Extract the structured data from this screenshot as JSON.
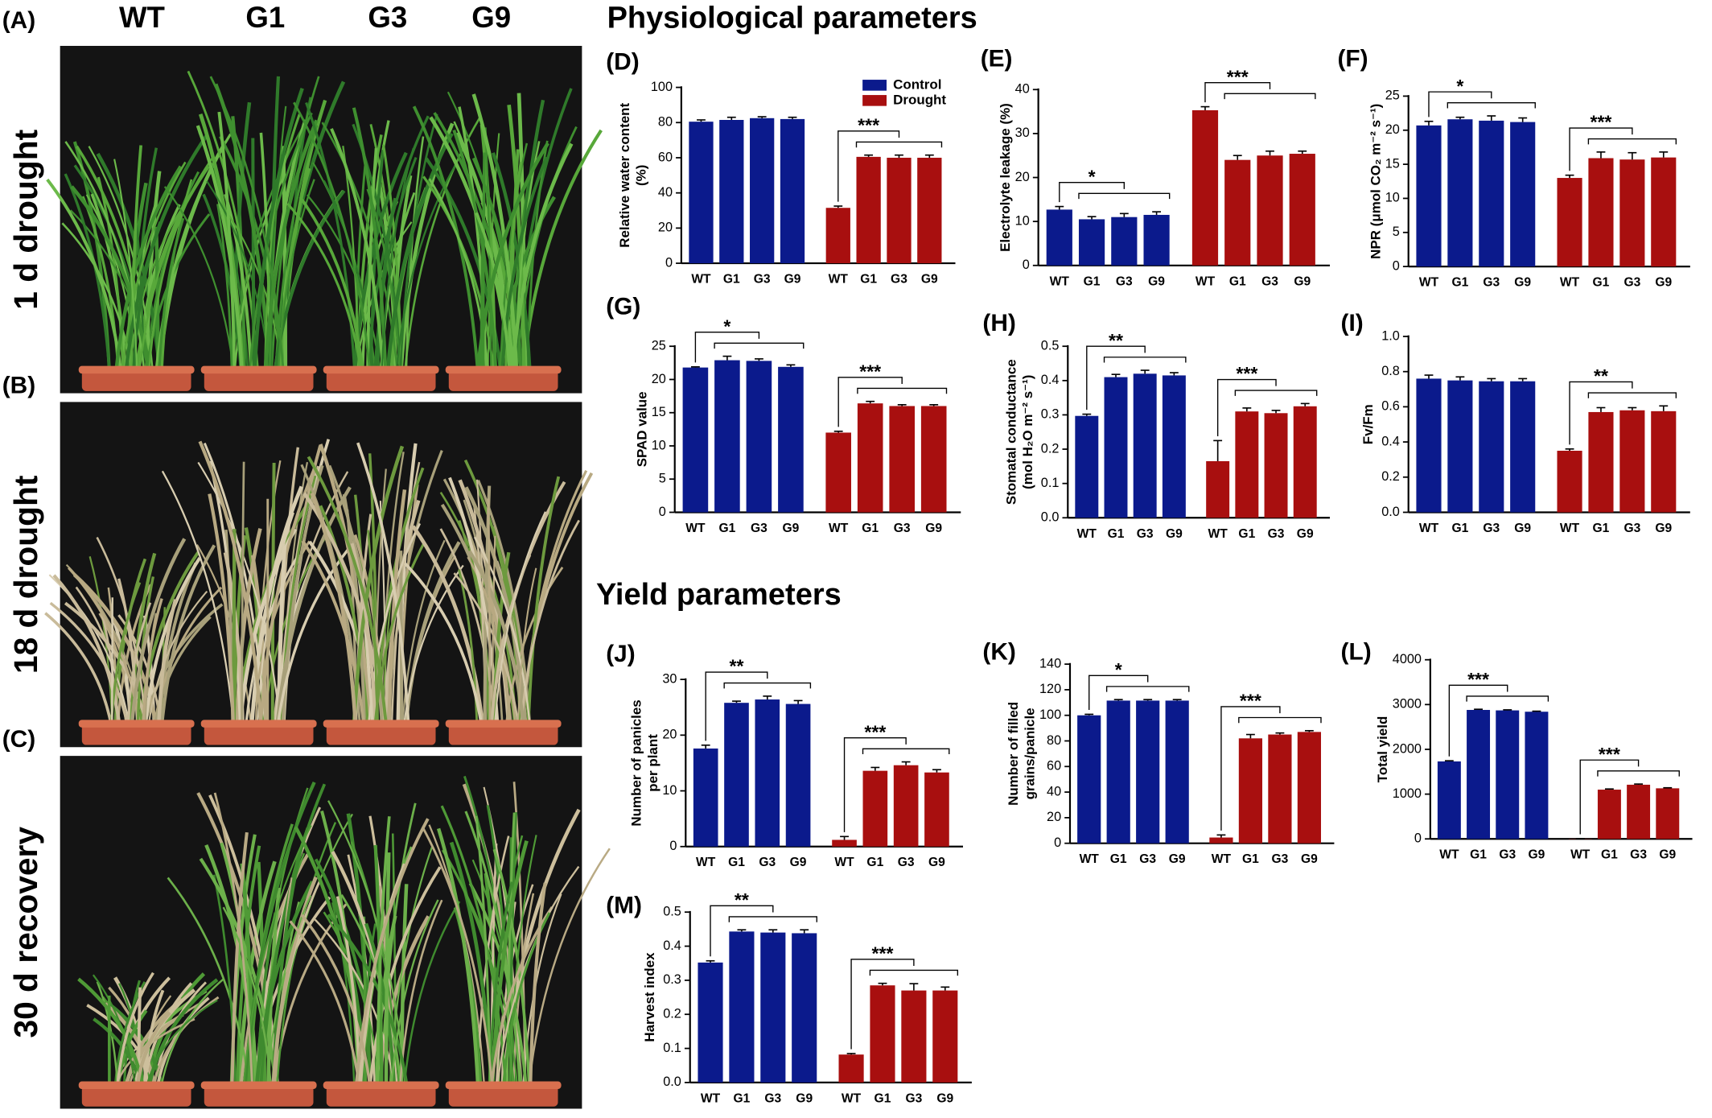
{
  "sections": [
    "Physiological parameters",
    "Yield parameters"
  ],
  "photos": {
    "labels": [
      "(A)",
      "(B)",
      "(C)"
    ],
    "captions": [
      "1 d drought",
      "18 d drought",
      "30 d recovery"
    ],
    "genotypes": [
      "WT",
      "G1",
      "G3",
      "G9"
    ]
  },
  "chart_data": [
    {
      "type": "bar",
      "label": "(D)",
      "ylabel": [
        "Relative water content",
        "(%)"
      ],
      "categories": [
        "WT",
        "G1",
        "G3",
        "G9"
      ],
      "ylim": [
        0,
        100
      ],
      "yticks": [
        0,
        20,
        40,
        60,
        80,
        100
      ],
      "legend": "top-right",
      "series": [
        {
          "name": "Control",
          "color": "#0b1a8c",
          "values": [
            80.5,
            81.5,
            82.5,
            82
          ],
          "errors": [
            1,
            1.5,
            0.8,
            1
          ]
        },
        {
          "name": "Drought",
          "color": "#a80f0f",
          "values": [
            31.5,
            60.5,
            60,
            60
          ],
          "errors": [
            1,
            1,
            1.5,
            1.5
          ],
          "significance": "***"
        }
      ]
    },
    {
      "type": "bar",
      "label": "(E)",
      "ylabel": [
        "Electrolyte leakage (%)"
      ],
      "categories": [
        "WT",
        "G1",
        "G3",
        "G9"
      ],
      "ylim": [
        0,
        40
      ],
      "yticks": [
        0,
        10,
        20,
        30,
        40
      ],
      "series": [
        {
          "name": "Control",
          "color": "#0b1a8c",
          "values": [
            12.7,
            10.5,
            11,
            11.5
          ],
          "errors": [
            0.7,
            0.6,
            0.8,
            0.7
          ],
          "significance": "*"
        },
        {
          "name": "Drought",
          "color": "#a80f0f",
          "values": [
            35.3,
            24,
            25,
            25.4
          ],
          "errors": [
            0.8,
            1,
            1,
            0.6
          ],
          "significance": "***"
        }
      ]
    },
    {
      "type": "bar",
      "label": "(F)",
      "ylabel": [
        "NPR (μmol CO₂ m⁻² s⁻¹)"
      ],
      "categories": [
        "WT",
        "G1",
        "G3",
        "G9"
      ],
      "ylim": [
        0,
        25
      ],
      "yticks": [
        0,
        5,
        10,
        15,
        20,
        25
      ],
      "series": [
        {
          "name": "Control",
          "color": "#0b1a8c",
          "values": [
            20.7,
            21.6,
            21.4,
            21.2
          ],
          "errors": [
            0.6,
            0.3,
            0.7,
            0.6
          ],
          "significance": "*"
        },
        {
          "name": "Drought",
          "color": "#a80f0f",
          "values": [
            13,
            15.9,
            15.7,
            16
          ],
          "errors": [
            0.4,
            0.9,
            1,
            0.8
          ],
          "significance": "***"
        }
      ]
    },
    {
      "type": "bar",
      "label": "(G)",
      "ylabel": [
        "SPAD value"
      ],
      "categories": [
        "WT",
        "G1",
        "G3",
        "G9"
      ],
      "ylim": [
        0,
        25
      ],
      "yticks": [
        0,
        5,
        10,
        15,
        20,
        25
      ],
      "series": [
        {
          "name": "Control",
          "color": "#0b1a8c",
          "values": [
            21.8,
            22.9,
            22.8,
            21.9
          ],
          "errors": [
            0.1,
            0.6,
            0.3,
            0.3
          ],
          "significance": "*"
        },
        {
          "name": "Drought",
          "color": "#a80f0f",
          "values": [
            12,
            16.4,
            16,
            16
          ],
          "errors": [
            0.2,
            0.3,
            0.2,
            0.2
          ],
          "significance": "***"
        }
      ]
    },
    {
      "type": "bar",
      "label": "(H)",
      "ylabel": [
        "Stomatal conductance",
        "(mol H₂O m⁻² s⁻¹)"
      ],
      "categories": [
        "WT",
        "G1",
        "G3",
        "G9"
      ],
      "ylim": [
        0,
        0.5
      ],
      "yticks": [
        {
          "value": 0,
          "label": "0.0"
        },
        0.1,
        0.2,
        0.3,
        0.4,
        0.5
      ],
      "series": [
        {
          "name": "Control",
          "color": "#0b1a8c",
          "values": [
            0.297,
            0.41,
            0.42,
            0.415
          ],
          "errors": [
            0.005,
            0.008,
            0.01,
            0.008
          ],
          "significance": "**"
        },
        {
          "name": "Drought",
          "color": "#a80f0f",
          "values": [
            0.165,
            0.31,
            0.305,
            0.325
          ],
          "errors": [
            0.06,
            0.01,
            0.008,
            0.008
          ],
          "significance": "***"
        }
      ]
    },
    {
      "type": "bar",
      "label": "(I)",
      "ylabel": [
        "Fv/Fm"
      ],
      "categories": [
        "WT",
        "G1",
        "G3",
        "G9"
      ],
      "ylim": [
        0,
        1
      ],
      "yticks": [
        {
          "value": 0,
          "label": "0.0"
        },
        0.2,
        0.4,
        0.6,
        0.8,
        {
          "value": 1,
          "label": "1.0"
        }
      ],
      "series": [
        {
          "name": "Control",
          "color": "#0b1a8c",
          "values": [
            0.76,
            0.75,
            0.745,
            0.745
          ],
          "errors": [
            0.02,
            0.02,
            0.015,
            0.015
          ]
        },
        {
          "name": "Drought",
          "color": "#a80f0f",
          "values": [
            0.35,
            0.57,
            0.58,
            0.575
          ],
          "errors": [
            0.01,
            0.025,
            0.015,
            0.03
          ],
          "significance": "**"
        }
      ]
    },
    {
      "type": "bar",
      "label": "(J)",
      "ylabel": [
        "Number of panicles",
        "per plant"
      ],
      "categories": [
        "WT",
        "G1",
        "G3",
        "G9"
      ],
      "ylim": [
        0,
        30
      ],
      "yticks": [
        0,
        10,
        20,
        30
      ],
      "series": [
        {
          "name": "Control",
          "color": "#0b1a8c",
          "values": [
            17.6,
            25.8,
            26.4,
            25.6
          ],
          "errors": [
            0.6,
            0.3,
            0.6,
            0.6
          ],
          "significance": "**"
        },
        {
          "name": "Drought",
          "color": "#a80f0f",
          "values": [
            1.2,
            13.6,
            14.6,
            13.3
          ],
          "errors": [
            0.6,
            0.6,
            0.6,
            0.5
          ],
          "significance": "***"
        }
      ]
    },
    {
      "type": "bar",
      "label": "(K)",
      "ylabel": [
        "Number of filled",
        "grains/panicle"
      ],
      "categories": [
        "WT",
        "G1",
        "G3",
        "G9"
      ],
      "ylim": [
        0,
        140
      ],
      "yticks": [
        0,
        20,
        40,
        60,
        80,
        100,
        120,
        140
      ],
      "series": [
        {
          "name": "Control",
          "color": "#0b1a8c",
          "values": [
            100,
            111.5,
            111.5,
            111.5
          ],
          "errors": [
            0.8,
            0.8,
            0.8,
            0.8
          ],
          "significance": "*"
        },
        {
          "name": "Drought",
          "color": "#a80f0f",
          "values": [
            4.5,
            82,
            85,
            87
          ],
          "errors": [
            2,
            3,
            1.2,
            1
          ],
          "significance": "***"
        }
      ]
    },
    {
      "type": "bar",
      "label": "(L)",
      "ylabel": [
        "Total yield"
      ],
      "categories": [
        "WT",
        "G1",
        "G3",
        "G9"
      ],
      "ylim": [
        0,
        4000
      ],
      "yticks": [
        0,
        1000,
        2000,
        3000,
        4000
      ],
      "series": [
        {
          "name": "Control",
          "color": "#0b1a8c",
          "values": [
            1730,
            2880,
            2870,
            2840
          ],
          "errors": [
            15,
            15,
            12,
            12
          ],
          "significance": "***"
        },
        {
          "name": "Drought",
          "color": "#a80f0f",
          "values": [
            5,
            1100,
            1210,
            1130
          ],
          "errors": [
            2,
            15,
            15,
            12
          ],
          "significance": "***"
        }
      ]
    },
    {
      "type": "bar",
      "label": "(M)",
      "ylabel": [
        "Harvest index"
      ],
      "categories": [
        "WT",
        "G1",
        "G3",
        "G9"
      ],
      "ylim": [
        0,
        0.5
      ],
      "yticks": [
        {
          "value": 0,
          "label": "0.0"
        },
        0.1,
        0.2,
        0.3,
        0.4,
        0.5
      ],
      "series": [
        {
          "name": "Control",
          "color": "#0b1a8c",
          "values": [
            0.352,
            0.443,
            0.44,
            0.438
          ],
          "errors": [
            0.005,
            0.005,
            0.008,
            0.01
          ],
          "significance": "**"
        },
        {
          "name": "Drought",
          "color": "#a80f0f",
          "values": [
            0.082,
            0.285,
            0.27,
            0.27
          ],
          "errors": [
            0.003,
            0.006,
            0.02,
            0.01
          ],
          "significance": "***"
        }
      ]
    }
  ]
}
